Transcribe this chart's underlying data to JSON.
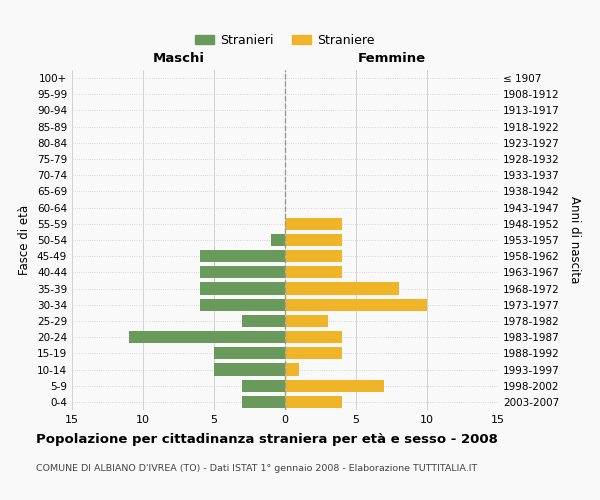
{
  "age_groups": [
    "0-4",
    "5-9",
    "10-14",
    "15-19",
    "20-24",
    "25-29",
    "30-34",
    "35-39",
    "40-44",
    "45-49",
    "50-54",
    "55-59",
    "60-64",
    "65-69",
    "70-74",
    "75-79",
    "80-84",
    "85-89",
    "90-94",
    "95-99",
    "100+"
  ],
  "birth_years": [
    "2003-2007",
    "1998-2002",
    "1993-1997",
    "1988-1992",
    "1983-1987",
    "1978-1982",
    "1973-1977",
    "1968-1972",
    "1963-1967",
    "1958-1962",
    "1953-1957",
    "1948-1952",
    "1943-1947",
    "1938-1942",
    "1933-1937",
    "1928-1932",
    "1923-1927",
    "1918-1922",
    "1913-1917",
    "1908-1912",
    "≤ 1907"
  ],
  "males": [
    3,
    3,
    5,
    5,
    11,
    3,
    6,
    6,
    6,
    6,
    1,
    0,
    0,
    0,
    0,
    0,
    0,
    0,
    0,
    0,
    0
  ],
  "females": [
    4,
    7,
    1,
    4,
    4,
    3,
    10,
    8,
    4,
    4,
    4,
    4,
    0,
    0,
    0,
    0,
    0,
    0,
    0,
    0,
    0
  ],
  "male_color": "#6a9a5b",
  "female_color": "#f0b429",
  "background_color": "#f9f9f9",
  "grid_color": "#cccccc",
  "title": "Popolazione per cittadinanza straniera per età e sesso - 2008",
  "subtitle": "COMUNE DI ALBIANO D'IVREA (TO) - Dati ISTAT 1° gennaio 2008 - Elaborazione TUTTITALIA.IT",
  "xlabel_left": "Maschi",
  "xlabel_right": "Femmine",
  "ylabel_left": "Fasce di età",
  "ylabel_right": "Anni di nascita",
  "legend_male": "Stranieri",
  "legend_female": "Straniere",
  "xlim": 15
}
